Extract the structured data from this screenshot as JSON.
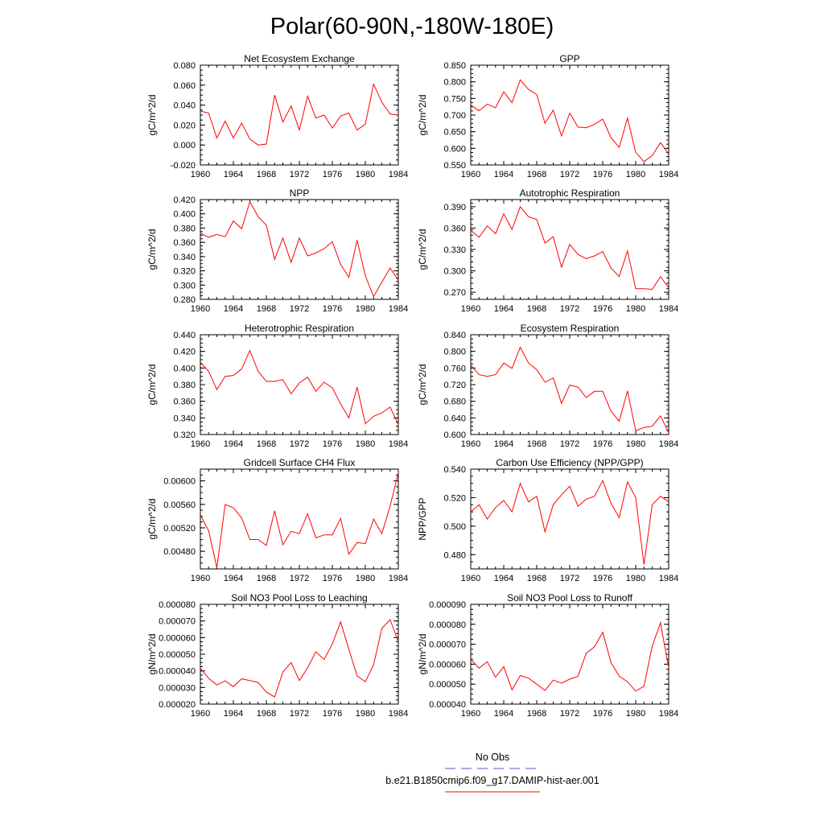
{
  "page": {
    "title": "Polar(60-90N,-180W-180E)"
  },
  "legend": {
    "entries": [
      {
        "label": "No Obs",
        "color": "#5555dd",
        "style": "dashed"
      },
      {
        "label": "b.e21.B1850cmip6.f09_g17.DAMIP-hist-aer.001",
        "color": "#ff0000",
        "style": "solid"
      }
    ]
  },
  "chart_data": [
    {
      "type": "line",
      "title": "Net Ecosystem Exchange",
      "ylabel": "gC/m^2/d",
      "xlabel": "",
      "xlim": [
        1960,
        1984
      ],
      "ylim": [
        -0.02,
        0.08
      ],
      "x_ticks": [
        "1960",
        "1964",
        "1968",
        "1972",
        "1976",
        "1980",
        "1984"
      ],
      "y_ticks": [
        "-0.020",
        "0.000",
        "0.020",
        "0.040",
        "0.060",
        "0.080"
      ],
      "series": [
        {
          "color": "#ff0000",
          "x": [
            1960,
            1961,
            1962,
            1963,
            1964,
            1965,
            1966,
            1967,
            1968,
            1969,
            1970,
            1971,
            1972,
            1973,
            1974,
            1975,
            1976,
            1977,
            1978,
            1979,
            1980,
            1981,
            1982,
            1983,
            1984
          ],
          "y": [
            0.034,
            0.032,
            0.007,
            0.024,
            0.007,
            0.022,
            0.006,
            0.0,
            0.001,
            0.05,
            0.023,
            0.039,
            0.015,
            0.049,
            0.027,
            0.03,
            0.017,
            0.029,
            0.032,
            0.015,
            0.021,
            0.061,
            0.043,
            0.031,
            0.03
          ]
        }
      ]
    },
    {
      "type": "line",
      "title": "GPP",
      "ylabel": "gC/m^2/d",
      "xlabel": "",
      "xlim": [
        1960,
        1984
      ],
      "ylim": [
        0.55,
        0.85
      ],
      "x_ticks": [
        "1960",
        "1964",
        "1968",
        "1972",
        "1976",
        "1980",
        "1984"
      ],
      "y_ticks": [
        "0.550",
        "0.600",
        "0.650",
        "0.700",
        "0.750",
        "0.800",
        "0.850"
      ],
      "series": [
        {
          "color": "#ff0000",
          "x": [
            1960,
            1961,
            1962,
            1963,
            1964,
            1965,
            1966,
            1967,
            1968,
            1969,
            1970,
            1971,
            1972,
            1973,
            1974,
            1975,
            1976,
            1977,
            1978,
            1979,
            1980,
            1981,
            1982,
            1983,
            1984
          ],
          "y": [
            0.73,
            0.713,
            0.733,
            0.722,
            0.77,
            0.737,
            0.806,
            0.777,
            0.762,
            0.675,
            0.715,
            0.637,
            0.706,
            0.664,
            0.662,
            0.672,
            0.688,
            0.632,
            0.603,
            0.691,
            0.588,
            0.56,
            0.578,
            0.617,
            0.583
          ]
        }
      ]
    },
    {
      "type": "line",
      "title": "NPP",
      "ylabel": "gC/m^2/d",
      "xlabel": "",
      "xlim": [
        1960,
        1984
      ],
      "ylim": [
        0.28,
        0.42
      ],
      "x_ticks": [
        "1960",
        "1964",
        "1968",
        "1972",
        "1976",
        "1980",
        "1984"
      ],
      "y_ticks": [
        "0.280",
        "0.300",
        "0.320",
        "0.340",
        "0.360",
        "0.380",
        "0.400",
        "0.420"
      ],
      "series": [
        {
          "color": "#ff0000",
          "x": [
            1960,
            1961,
            1962,
            1963,
            1964,
            1965,
            1966,
            1967,
            1968,
            1969,
            1970,
            1971,
            1972,
            1973,
            1974,
            1975,
            1976,
            1977,
            1978,
            1979,
            1980,
            1981,
            1982,
            1983,
            1984
          ],
          "y": [
            0.373,
            0.367,
            0.371,
            0.368,
            0.39,
            0.379,
            0.417,
            0.396,
            0.384,
            0.336,
            0.366,
            0.332,
            0.366,
            0.341,
            0.345,
            0.351,
            0.361,
            0.329,
            0.311,
            0.363,
            0.313,
            0.284,
            0.304,
            0.324,
            0.307
          ]
        }
      ]
    },
    {
      "type": "line",
      "title": "Autotrophic Respiration",
      "ylabel": "gC/m^2/d",
      "xlabel": "",
      "xlim": [
        1960,
        1984
      ],
      "ylim": [
        0.26,
        0.4
      ],
      "x_ticks": [
        "1960",
        "1964",
        "1968",
        "1972",
        "1976",
        "1980",
        "1984"
      ],
      "y_ticks": [
        "0.270",
        "0.300",
        "0.330",
        "0.360",
        "0.390"
      ],
      "series": [
        {
          "color": "#ff0000",
          "x": [
            1960,
            1961,
            1962,
            1963,
            1964,
            1965,
            1966,
            1967,
            1968,
            1969,
            1970,
            1971,
            1972,
            1973,
            1974,
            1975,
            1976,
            1977,
            1978,
            1979,
            1980,
            1981,
            1982,
            1983,
            1984
          ],
          "y": [
            0.357,
            0.347,
            0.363,
            0.352,
            0.38,
            0.358,
            0.39,
            0.376,
            0.372,
            0.339,
            0.348,
            0.305,
            0.337,
            0.323,
            0.317,
            0.321,
            0.327,
            0.304,
            0.292,
            0.328,
            0.275,
            0.275,
            0.274,
            0.292,
            0.276
          ]
        }
      ]
    },
    {
      "type": "line",
      "title": "Heterotrophic Respiration",
      "ylabel": "gC/m^2/d",
      "xlabel": "",
      "xlim": [
        1960,
        1984
      ],
      "ylim": [
        0.32,
        0.44
      ],
      "x_ticks": [
        "1960",
        "1964",
        "1968",
        "1972",
        "1976",
        "1980",
        "1984"
      ],
      "y_ticks": [
        "0.320",
        "0.340",
        "0.360",
        "0.380",
        "0.400",
        "0.420",
        "0.440"
      ],
      "series": [
        {
          "color": "#ff0000",
          "x": [
            1960,
            1961,
            1962,
            1963,
            1964,
            1965,
            1966,
            1967,
            1968,
            1969,
            1970,
            1971,
            1972,
            1973,
            1974,
            1975,
            1976,
            1977,
            1978,
            1979,
            1980,
            1981,
            1982,
            1983,
            1984
          ],
          "y": [
            0.407,
            0.396,
            0.374,
            0.39,
            0.391,
            0.399,
            0.421,
            0.396,
            0.384,
            0.384,
            0.386,
            0.369,
            0.382,
            0.389,
            0.372,
            0.383,
            0.376,
            0.357,
            0.34,
            0.377,
            0.333,
            0.342,
            0.346,
            0.353,
            0.332
          ]
        }
      ]
    },
    {
      "type": "line",
      "title": "Ecosystem Respiration",
      "ylabel": "gC/m^2/d",
      "xlabel": "",
      "xlim": [
        1960,
        1984
      ],
      "ylim": [
        0.6,
        0.84
      ],
      "x_ticks": [
        "1960",
        "1964",
        "1968",
        "1972",
        "1976",
        "1980",
        "1984"
      ],
      "y_ticks": [
        "0.600",
        "0.640",
        "0.680",
        "0.720",
        "0.760",
        "0.800",
        "0.840"
      ],
      "series": [
        {
          "color": "#ff0000",
          "x": [
            1960,
            1961,
            1962,
            1963,
            1964,
            1965,
            1966,
            1967,
            1968,
            1969,
            1970,
            1971,
            1972,
            1973,
            1974,
            1975,
            1976,
            1977,
            1978,
            1979,
            1980,
            1981,
            1982,
            1983,
            1984
          ],
          "y": [
            0.767,
            0.744,
            0.74,
            0.744,
            0.772,
            0.759,
            0.81,
            0.772,
            0.756,
            0.726,
            0.736,
            0.675,
            0.719,
            0.714,
            0.689,
            0.704,
            0.704,
            0.656,
            0.632,
            0.705,
            0.609,
            0.617,
            0.62,
            0.645,
            0.604
          ]
        }
      ]
    },
    {
      "type": "line",
      "title": "Gridcell Surface CH4 Flux",
      "ylabel": "gC/m^2/d",
      "xlabel": "",
      "xlim": [
        1960,
        1984
      ],
      "ylim": [
        0.0045,
        0.0062
      ],
      "x_ticks": [
        "1960",
        "1964",
        "1968",
        "1972",
        "1976",
        "1980",
        "1984"
      ],
      "y_ticks": [
        "0.00480",
        "0.00520",
        "0.00560",
        "0.00600"
      ],
      "series": [
        {
          "color": "#ff0000",
          "x": [
            1960,
            1961,
            1962,
            1963,
            1964,
            1965,
            1966,
            1967,
            1968,
            1969,
            1970,
            1971,
            1972,
            1973,
            1974,
            1975,
            1976,
            1977,
            1978,
            1979,
            1980,
            1981,
            1982,
            1983,
            1984
          ],
          "y": [
            0.00542,
            0.00515,
            0.00452,
            0.0056,
            0.00554,
            0.00537,
            0.005,
            0.005,
            0.0049,
            0.00549,
            0.00491,
            0.00514,
            0.0051,
            0.00544,
            0.00503,
            0.00508,
            0.00508,
            0.00536,
            0.00475,
            0.00495,
            0.00493,
            0.00535,
            0.0051,
            0.00557,
            0.00614
          ]
        }
      ]
    },
    {
      "type": "line",
      "title": "Carbon Use Efficiency (NPP/GPP)",
      "ylabel": "NPP/GPP",
      "xlabel": "",
      "xlim": [
        1960,
        1984
      ],
      "ylim": [
        0.47,
        0.54
      ],
      "x_ticks": [
        "1960",
        "1964",
        "1968",
        "1972",
        "1976",
        "1980",
        "1984"
      ],
      "y_ticks": [
        "0.480",
        "0.500",
        "0.520",
        "0.540"
      ],
      "series": [
        {
          "color": "#ff0000",
          "x": [
            1960,
            1961,
            1962,
            1963,
            1964,
            1965,
            1966,
            1967,
            1968,
            1969,
            1970,
            1971,
            1972,
            1973,
            1974,
            1975,
            1976,
            1977,
            1978,
            1979,
            1980,
            1981,
            1982,
            1983,
            1984
          ],
          "y": [
            0.51,
            0.515,
            0.505,
            0.513,
            0.518,
            0.51,
            0.53,
            0.517,
            0.521,
            0.496,
            0.515,
            0.522,
            0.528,
            0.514,
            0.519,
            0.521,
            0.532,
            0.516,
            0.506,
            0.531,
            0.52,
            0.473,
            0.515,
            0.521,
            0.517
          ]
        }
      ]
    },
    {
      "type": "line",
      "title": "Soil NO3 Pool Loss to Leaching",
      "ylabel": "gN/m^2/d",
      "xlabel": "",
      "xlim": [
        1960,
        1984
      ],
      "ylim": [
        2e-05,
        8e-05
      ],
      "x_ticks": [
        "1960",
        "1964",
        "1968",
        "1972",
        "1976",
        "1980",
        "1984"
      ],
      "y_ticks": [
        "0.000020",
        "0.000030",
        "0.000040",
        "0.000050",
        "0.000060",
        "0.000070",
        "0.000080"
      ],
      "series": [
        {
          "color": "#ff0000",
          "x": [
            1960,
            1961,
            1962,
            1963,
            1964,
            1965,
            1966,
            1967,
            1968,
            1969,
            1970,
            1971,
            1972,
            1973,
            1974,
            1975,
            1976,
            1977,
            1978,
            1979,
            1980,
            1981,
            1982,
            1983,
            1984
          ],
          "y": [
            4.15e-05,
            3.55e-05,
            3.15e-05,
            3.4e-05,
            3.05e-05,
            3.52e-05,
            3.42e-05,
            3.3e-05,
            2.72e-05,
            2.43e-05,
            3.92e-05,
            4.5e-05,
            3.42e-05,
            4.18e-05,
            5.15e-05,
            4.68e-05,
            5.62e-05,
            6.95e-05,
            5.3e-05,
            3.7e-05,
            3.34e-05,
            4.37e-05,
            6.55e-05,
            7.08e-05,
            5.75e-05
          ]
        }
      ]
    },
    {
      "type": "line",
      "title": "Soil NO3 Pool Loss to Runoff",
      "ylabel": "gN/m^2/d",
      "xlabel": "",
      "xlim": [
        1960,
        1984
      ],
      "ylim": [
        4e-05,
        9e-05
      ],
      "x_ticks": [
        "1960",
        "1964",
        "1968",
        "1972",
        "1976",
        "1980",
        "1984"
      ],
      "y_ticks": [
        "0.000040",
        "0.000050",
        "0.000060",
        "0.000070",
        "0.000080",
        "0.000090"
      ],
      "series": [
        {
          "color": "#ff0000",
          "x": [
            1960,
            1961,
            1962,
            1963,
            1964,
            1965,
            1966,
            1967,
            1968,
            1969,
            1970,
            1971,
            1972,
            1973,
            1974,
            1975,
            1976,
            1977,
            1978,
            1979,
            1980,
            1981,
            1982,
            1983,
            1984
          ],
          "y": [
            6.25e-05,
            5.8e-05,
            6.12e-05,
            5.35e-05,
            5.88e-05,
            4.71e-05,
            5.43e-05,
            5.3e-05,
            5e-05,
            4.68e-05,
            5.2e-05,
            5.05e-05,
            5.25e-05,
            5.4e-05,
            6.55e-05,
            6.87e-05,
            7.6e-05,
            6.08e-05,
            5.4e-05,
            5.12e-05,
            4.65e-05,
            4.9e-05,
            6.9e-05,
            8.08e-05,
            5.8e-05
          ]
        }
      ]
    }
  ]
}
